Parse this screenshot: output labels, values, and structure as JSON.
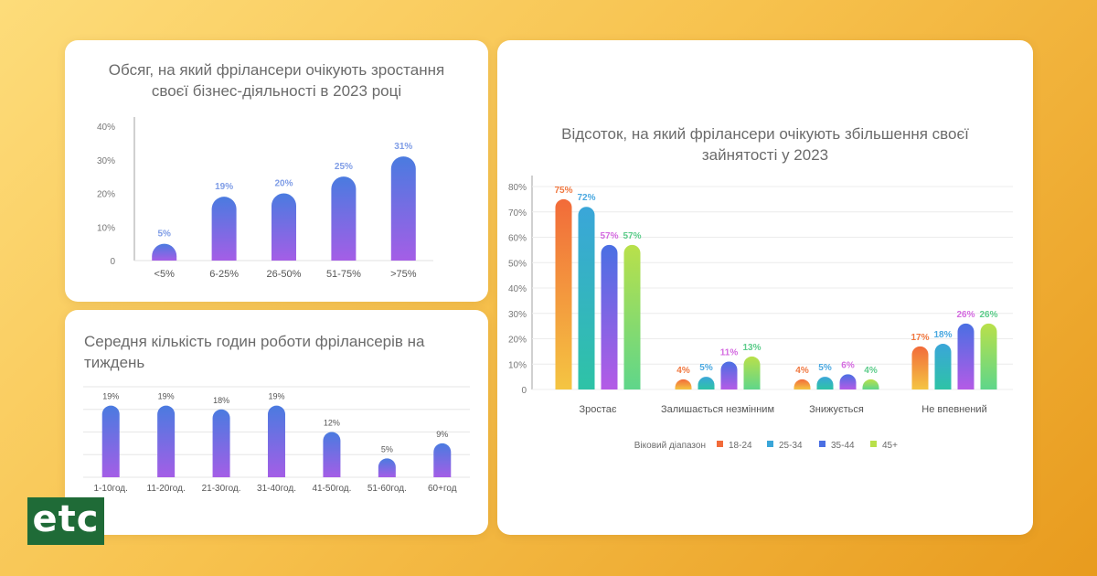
{
  "charts": [
    {
      "type": "bar",
      "title": "Обсяг, на який фрілансери очікують зростання своєї бізнес-діяльності в 2023 році",
      "title_lines": [
        "Обсяг, на який фрілансери очікують зростання",
        "своєї бізнес-діяльності в 2023 році"
      ],
      "categories": [
        "<5%",
        "6-25%",
        "26-50%",
        "51-75%",
        ">75%"
      ],
      "values": [
        5,
        19,
        20,
        25,
        31
      ],
      "value_labels": [
        "5%",
        "19%",
        "20%",
        "25%",
        "31%"
      ],
      "y_ticks": [
        "0",
        "10%",
        "20%",
        "30%",
        "40%"
      ],
      "ylim": [
        0,
        40
      ],
      "colors": {
        "top": "#4a7be0",
        "bottom": "#a45ee6",
        "label": "#7e9ce6"
      }
    },
    {
      "type": "bar",
      "title": "Середня кількість годин роботи фрілансерів на тиждень",
      "categories": [
        "1-10год.",
        "11-20год.",
        "21-30год.",
        "31-40год.",
        "41-50год.",
        "51-60год.",
        "60+год"
      ],
      "values": [
        19,
        19,
        18,
        19,
        12,
        5,
        9
      ],
      "value_labels": [
        "19%",
        "19%",
        "18%",
        "19%",
        "12%",
        "5%",
        "9%"
      ],
      "ylim": [
        0,
        24
      ],
      "colors": {
        "top": "#4a7be0",
        "bottom": "#a45ee6",
        "label": "#555555"
      }
    },
    {
      "type": "bar",
      "title": "Відсоток, на який фрілансери очікують збільшення своєї зайнятості у 2023",
      "title_lines": [
        "Відсоток, на який фрілансери очікують збільшення своєї",
        "зайнятості у 2023"
      ],
      "categories": [
        "Зростає",
        "Залишається незмінним",
        "Знижується",
        "Не впевнений"
      ],
      "series": [
        {
          "name": "18-24",
          "values": [
            75,
            4,
            4,
            17
          ],
          "value_labels": [
            "75%",
            "4%",
            "4%",
            "17%"
          ],
          "color_top": "#f26b3a",
          "color_bottom": "#f4c542",
          "label_color": "#f07840"
        },
        {
          "name": "25-34",
          "values": [
            72,
            5,
            5,
            18
          ],
          "value_labels": [
            "72%",
            "5%",
            "5%",
            "18%"
          ],
          "color_top": "#3aa6d9",
          "color_bottom": "#2ec3a6",
          "label_color": "#4aa8e0"
        },
        {
          "name": "35-44",
          "values": [
            57,
            11,
            6,
            26
          ],
          "value_labels": [
            "57%",
            "11%",
            "6%",
            "26%"
          ],
          "color_top": "#4a6fe3",
          "color_bottom": "#b45be6",
          "label_color": "#d46ae0"
        },
        {
          "name": "45+",
          "values": [
            57,
            13,
            4,
            26
          ],
          "value_labels": [
            "57%",
            "13%",
            "4%",
            "26%"
          ],
          "color_top": "#b9e04a",
          "color_bottom": "#5fd68a",
          "label_color": "#5ccc8a"
        }
      ],
      "y_ticks": [
        "0",
        "10%",
        "20%",
        "30%",
        "40%",
        "50%",
        "60%",
        "70%",
        "80%"
      ],
      "ylim": [
        0,
        80
      ],
      "legend_title": "Віковий діапазон",
      "legend_position": "bottom"
    }
  ],
  "logo": {
    "text": "etc"
  }
}
